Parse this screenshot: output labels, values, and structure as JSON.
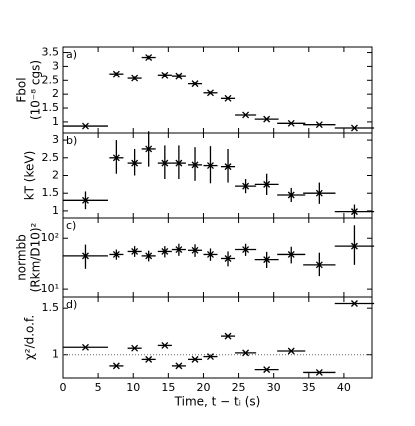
{
  "chart_data": [
    {
      "type": "errorbar",
      "panel_label": "a)",
      "ylabel": [
        "Fbol",
        "(10⁻⁸ cgs)"
      ],
      "x": [
        3.2,
        7.6,
        10.2,
        12.2,
        14.5,
        16.5,
        18.8,
        21,
        23.5,
        26,
        29,
        32.5,
        36.5,
        41.5
      ],
      "xerr": [
        3.2,
        1,
        1,
        1,
        1,
        1,
        1,
        1,
        1,
        1.5,
        1.7,
        2,
        2.3,
        2.8
      ],
      "values": [
        0.85,
        2.72,
        2.58,
        3.32,
        2.68,
        2.65,
        2.38,
        2.05,
        1.85,
        1.25,
        1.1,
        0.95,
        0.9,
        0.78
      ],
      "yerr": [
        [
          0.03,
          0.03
        ],
        [
          0.06,
          0.06
        ],
        [
          0.06,
          0.06
        ],
        [
          0.07,
          0.07
        ],
        [
          0.06,
          0.06
        ],
        [
          0.06,
          0.06
        ],
        [
          0.05,
          0.05
        ],
        [
          0.05,
          0.05
        ],
        [
          0.04,
          0.04
        ],
        [
          0.03,
          0.03
        ],
        [
          0.03,
          0.03
        ],
        [
          0.03,
          0.03
        ],
        [
          0.03,
          0.03
        ],
        [
          0.03,
          0.03
        ]
      ],
      "xlim": [
        0,
        44
      ],
      "xticks": [
        0,
        5,
        10,
        15,
        20,
        25,
        30,
        35,
        40
      ],
      "ylim": [
        0.6,
        3.7
      ],
      "yticks": [
        1.0,
        1.5,
        2.0,
        2.5,
        3.0,
        3.5
      ],
      "color": "#000000"
    },
    {
      "type": "errorbar",
      "panel_label": "b)",
      "ylabel": [
        "kT (keV)"
      ],
      "x": [
        3.2,
        7.6,
        10.2,
        12.2,
        14.5,
        16.5,
        18.8,
        21,
        23.5,
        26,
        29,
        32.5,
        36.5,
        41.5
      ],
      "xerr": [
        3.2,
        1,
        1,
        1,
        1,
        1,
        1,
        1,
        1,
        1.5,
        1.7,
        2,
        2.3,
        2.8
      ],
      "values": [
        1.3,
        2.5,
        2.35,
        2.75,
        2.35,
        2.35,
        2.3,
        2.28,
        2.25,
        1.7,
        1.75,
        1.45,
        1.5,
        0.98
      ],
      "yerr": [
        [
          0.25,
          0.25
        ],
        [
          0.45,
          0.5
        ],
        [
          0.35,
          0.4
        ],
        [
          0.5,
          0.5
        ],
        [
          0.45,
          0.5
        ],
        [
          0.45,
          0.5
        ],
        [
          0.45,
          0.5
        ],
        [
          0.5,
          0.55
        ],
        [
          0.45,
          0.5
        ],
        [
          0.2,
          0.2
        ],
        [
          0.3,
          0.3
        ],
        [
          0.2,
          0.2
        ],
        [
          0.3,
          0.3
        ],
        [
          0.2,
          0.2
        ]
      ],
      "xlim": [
        0,
        44
      ],
      "xticks": [
        0,
        5,
        10,
        15,
        20,
        25,
        30,
        35,
        40
      ],
      "ylim": [
        0.8,
        3.2
      ],
      "yticks": [
        1.0,
        1.5,
        2.0,
        2.5,
        3.0
      ],
      "color": "#000000"
    },
    {
      "type": "errorbar",
      "panel_label": "c)",
      "ylabel": [
        "normbb",
        "(Rkm/D10)²"
      ],
      "log_y": true,
      "x": [
        3.2,
        7.6,
        10.2,
        12.2,
        14.5,
        16.5,
        18.8,
        21,
        23.5,
        26,
        29,
        32.5,
        36.5,
        41.5
      ],
      "xerr": [
        3.2,
        1,
        1,
        1,
        1,
        1,
        1,
        1,
        1,
        1.5,
        1.7,
        2,
        2.3,
        2.8
      ],
      "values": [
        45,
        48,
        55,
        45,
        55,
        60,
        58,
        48,
        40,
        60,
        38,
        48,
        30,
        70
      ],
      "yerr": [
        [
          20,
          30
        ],
        [
          10,
          12
        ],
        [
          12,
          15
        ],
        [
          10,
          12
        ],
        [
          13,
          15
        ],
        [
          15,
          18
        ],
        [
          15,
          18
        ],
        [
          12,
          15
        ],
        [
          12,
          15
        ],
        [
          15,
          18
        ],
        [
          12,
          16
        ],
        [
          16,
          20
        ],
        [
          12,
          22
        ],
        [
          40,
          110
        ]
      ],
      "xlim": [
        0,
        44
      ],
      "xticks": [
        0,
        5,
        10,
        15,
        20,
        25,
        30,
        35,
        40
      ],
      "ylim": [
        7,
        250
      ],
      "yticks": [
        {
          "value": 10,
          "label": "10¹"
        },
        {
          "value": 100,
          "label": "10²"
        }
      ],
      "color": "#000000"
    },
    {
      "type": "errorbar",
      "panel_label": "d)",
      "ylabel": [
        "χ²/d.o.f."
      ],
      "xlabel": "Time, t − tᵢ (s)",
      "hline": 1.0,
      "x": [
        3.2,
        7.6,
        10.2,
        12.2,
        14.5,
        16.5,
        18.8,
        21,
        23.5,
        26,
        29,
        32.5,
        36.5,
        41.5
      ],
      "xerr": [
        3.2,
        1,
        1,
        1,
        1,
        1,
        1,
        1,
        1,
        1.5,
        1.7,
        2,
        2.3,
        2.8
      ],
      "values": [
        1.08,
        0.88,
        1.07,
        0.95,
        1.1,
        0.88,
        0.95,
        0.98,
        1.2,
        1.02,
        0.84,
        1.04,
        0.81,
        1.55
      ],
      "xlim": [
        0,
        44
      ],
      "xticks": [
        0,
        5,
        10,
        15,
        20,
        25,
        30,
        35,
        40
      ],
      "ylim": [
        0.75,
        1.62
      ],
      "yticks": [
        1.0,
        1.5
      ],
      "color": "#000000"
    }
  ]
}
